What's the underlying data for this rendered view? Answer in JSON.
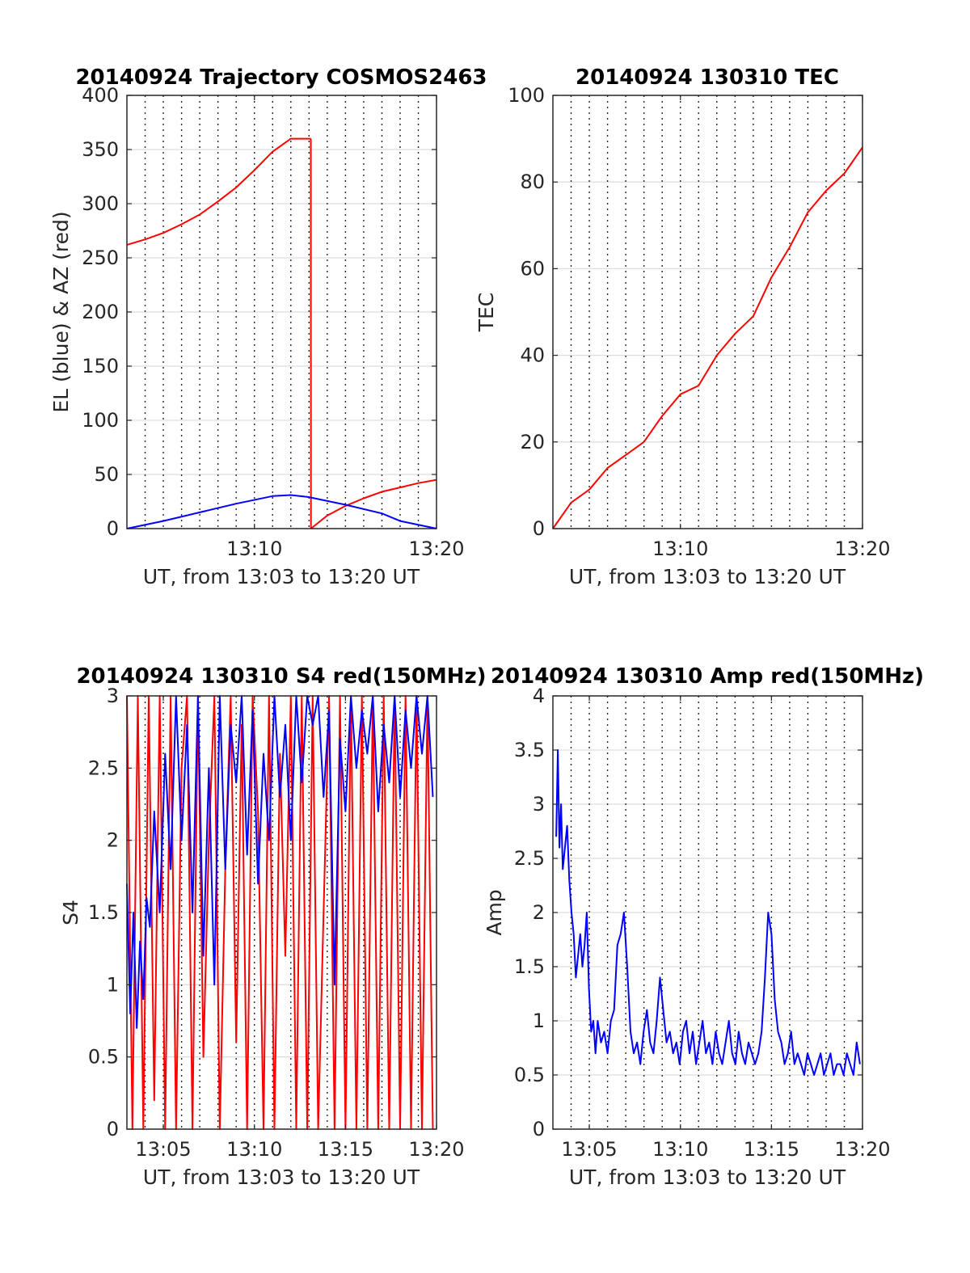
{
  "colors": {
    "red": "#ff0000",
    "blue": "#0000ff",
    "axis": "#262626",
    "grid": "#dedede"
  },
  "chart_data": [
    {
      "id": "trajectory",
      "type": "line",
      "title": "20140924 Trajectory COSMOS2463",
      "xlabel": "UT, from 13:03 to 13:20 UT",
      "ylabel": "EL (blue) & AZ (red)",
      "xlim": [
        13.05,
        13.3333
      ],
      "ylim": [
        0,
        400
      ],
      "yticks": [
        0,
        50,
        100,
        150,
        200,
        250,
        300,
        350,
        400
      ],
      "xticks": [
        {
          "v": 13.1667,
          "label": "13:10"
        },
        {
          "v": 13.3333,
          "label": "13:20"
        }
      ],
      "grid_minutes": true,
      "series": [
        {
          "color": "red",
          "x": [
            13.05,
            13.0667,
            13.0833,
            13.1,
            13.1167,
            13.1333,
            13.15,
            13.1667,
            13.1833,
            13.2,
            13.2167,
            13.2183
          ],
          "y": [
            262,
            267,
            273,
            281,
            290,
            302,
            315,
            331,
            348,
            360,
            360,
            360
          ]
        },
        {
          "color": "red",
          "x": [
            13.2183,
            13.2184
          ],
          "y": [
            360,
            0
          ]
        },
        {
          "color": "red",
          "x": [
            13.2184,
            13.2333,
            13.25,
            13.2667,
            13.2833,
            13.3,
            13.3167,
            13.3333
          ],
          "y": [
            0,
            12,
            21,
            28,
            34,
            38,
            42,
            45
          ]
        },
        {
          "color": "blue",
          "x": [
            13.05,
            13.0833,
            13.1167,
            13.15,
            13.1833,
            13.2,
            13.2167,
            13.25,
            13.2833,
            13.3,
            13.3333
          ],
          "y": [
            0,
            7,
            15,
            23,
            30,
            31,
            29,
            22,
            14,
            7,
            0
          ]
        }
      ]
    },
    {
      "id": "tec",
      "type": "line",
      "title": "20140924 130310 TEC",
      "xlabel": "UT, from 13:03 to 13:20 UT",
      "ylabel": "TEC",
      "xlim": [
        13.05,
        13.3333
      ],
      "ylim": [
        0,
        100
      ],
      "yticks": [
        0,
        20,
        40,
        60,
        80,
        100
      ],
      "xticks": [
        {
          "v": 13.1667,
          "label": "13:10"
        },
        {
          "v": 13.3333,
          "label": "13:20"
        }
      ],
      "grid_minutes": true,
      "series": [
        {
          "color": "red",
          "x": [
            13.05,
            13.0667,
            13.0833,
            13.1,
            13.1167,
            13.1333,
            13.15,
            13.1667,
            13.1833,
            13.2,
            13.2167,
            13.2333,
            13.25,
            13.2667,
            13.2833,
            13.3,
            13.3167,
            13.3333
          ],
          "y": [
            0,
            6,
            9,
            14,
            17,
            20,
            26,
            31,
            33,
            40,
            45,
            49,
            58,
            65,
            73,
            78,
            82,
            88
          ]
        }
      ]
    },
    {
      "id": "s4",
      "type": "line",
      "title": "20140924 130310 S4 red(150MHz)",
      "xlabel": "UT, from 13:03 to 13:20 UT",
      "ylabel": "S4",
      "xlim": [
        13.05,
        13.3333
      ],
      "ylim": [
        0,
        3
      ],
      "yticks": [
        0,
        0.5,
        1,
        1.5,
        2,
        2.5,
        3
      ],
      "xticks": [
        {
          "v": 13.0833,
          "label": "13:05"
        },
        {
          "v": 13.1667,
          "label": "13:10"
        },
        {
          "v": 13.25,
          "label": "13:15"
        },
        {
          "v": 13.3333,
          "label": "13:20"
        }
      ],
      "grid_minutes": true,
      "series": [
        {
          "color": "red",
          "x": [
            13.05,
            13.055,
            13.06,
            13.065,
            13.07,
            13.075,
            13.08,
            13.085,
            13.09,
            13.095,
            13.1,
            13.105,
            13.11,
            13.115,
            13.12,
            13.125,
            13.13,
            13.135,
            13.14,
            13.145,
            13.15,
            13.155,
            13.16,
            13.165,
            13.17,
            13.175,
            13.18,
            13.185,
            13.19,
            13.195,
            13.2,
            13.205,
            13.21,
            13.215,
            13.22,
            13.225,
            13.23,
            13.235,
            13.24,
            13.245,
            13.25,
            13.255,
            13.26,
            13.265,
            13.27,
            13.275,
            13.28,
            13.285,
            13.29,
            13.295,
            13.3,
            13.305,
            13.31,
            13.315,
            13.32,
            13.325,
            13.33
          ],
          "y": [
            3,
            0,
            3,
            0,
            3,
            0.2,
            3,
            0,
            3,
            0,
            2.5,
            3,
            0,
            3,
            0.5,
            2,
            3,
            0,
            1.8,
            3,
            0.6,
            2.8,
            0,
            3,
            2.2,
            0,
            3,
            0,
            2.6,
            1.2,
            3,
            0,
            3,
            0,
            3,
            0,
            1.5,
            3,
            0,
            3,
            0,
            3,
            0,
            3,
            0,
            3,
            0,
            3,
            0,
            3,
            0,
            3,
            0,
            3,
            0,
            3,
            0
          ]
        },
        {
          "color": "blue",
          "x": [
            13.05,
            13.053,
            13.056,
            13.059,
            13.062,
            13.065,
            13.068,
            13.071,
            13.075,
            13.08,
            13.085,
            13.09,
            13.095,
            13.1,
            13.105,
            13.11,
            13.115,
            13.12,
            13.125,
            13.13,
            13.135,
            13.14,
            13.145,
            13.15,
            13.155,
            13.16,
            13.165,
            13.17,
            13.175,
            13.18,
            13.185,
            13.19,
            13.195,
            13.2,
            13.205,
            13.21,
            13.215,
            13.22,
            13.225,
            13.23,
            13.235,
            13.24,
            13.245,
            13.25,
            13.255,
            13.26,
            13.265,
            13.27,
            13.275,
            13.28,
            13.285,
            13.29,
            13.295,
            13.3,
            13.305,
            13.31,
            13.315,
            13.32,
            13.325,
            13.33
          ],
          "y": [
            1.7,
            0.8,
            1.5,
            0.7,
            1.3,
            0.9,
            1.6,
            1.4,
            2.2,
            1.5,
            2.6,
            1.8,
            3,
            2.0,
            2.8,
            1.5,
            3,
            1.2,
            2.5,
            1.0,
            3,
            1.8,
            2.8,
            2.4,
            3,
            1.9,
            2.9,
            1.7,
            2.6,
            2.0,
            3,
            2.3,
            2.8,
            2.0,
            3,
            2.4,
            3,
            2.8,
            3,
            2.3,
            2.9,
            1.0,
            2.7,
            2.2,
            3,
            2.5,
            2.9,
            2.6,
            3,
            2.2,
            2.8,
            2.4,
            3,
            2.3,
            2.9,
            2.5,
            3,
            2.6,
            3,
            2.3
          ]
        }
      ]
    },
    {
      "id": "amp",
      "type": "line",
      "title": "20140924 130310 Amp red(150MHz)",
      "xlabel": "UT, from 13:03 to 13:20 UT",
      "ylabel": "Amp",
      "xlim": [
        13.05,
        13.3333
      ],
      "ylim": [
        0,
        4
      ],
      "yticks": [
        0,
        0.5,
        1,
        1.5,
        2,
        2.5,
        3,
        3.5,
        4
      ],
      "xticks": [
        {
          "v": 13.0833,
          "label": "13:05"
        },
        {
          "v": 13.1667,
          "label": "13:10"
        },
        {
          "v": 13.25,
          "label": "13:15"
        },
        {
          "v": 13.3333,
          "label": "13:20"
        }
      ],
      "grid_minutes": true,
      "series": [
        {
          "color": "blue",
          "x": [
            13.053,
            13.0545,
            13.056,
            13.0575,
            13.059,
            13.061,
            13.063,
            13.065,
            13.067,
            13.069,
            13.071,
            13.073,
            13.075,
            13.077,
            13.079,
            13.081,
            13.083,
            13.085,
            13.087,
            13.089,
            13.091,
            13.094,
            13.097,
            13.1,
            13.103,
            13.106,
            13.109,
            13.112,
            13.115,
            13.118,
            13.121,
            13.124,
            13.127,
            13.13,
            13.133,
            13.136,
            13.139,
            13.142,
            13.145,
            13.148,
            13.151,
            13.154,
            13.157,
            13.16,
            13.163,
            13.166,
            13.169,
            13.172,
            13.175,
            13.178,
            13.181,
            13.184,
            13.187,
            13.19,
            13.193,
            13.196,
            13.199,
            13.202,
            13.205,
            13.208,
            13.211,
            13.214,
            13.217,
            13.22,
            13.223,
            13.226,
            13.229,
            13.232,
            13.235,
            13.238,
            13.241,
            13.244,
            13.247,
            13.25,
            13.253,
            13.256,
            13.259,
            13.262,
            13.265,
            13.268,
            13.271,
            13.274,
            13.277,
            13.28,
            13.283,
            13.286,
            13.289,
            13.292,
            13.295,
            13.298,
            13.301,
            13.304,
            13.307,
            13.31,
            13.313,
            13.316,
            13.319,
            13.322,
            13.325,
            13.328,
            13.331
          ],
          "y": [
            2.7,
            3.5,
            2.6,
            3.0,
            2.4,
            2.6,
            2.8,
            2.3,
            2.0,
            1.8,
            1.4,
            1.6,
            1.8,
            1.5,
            1.7,
            2.0,
            1.3,
            0.9,
            1.0,
            0.7,
            1.0,
            0.8,
            0.9,
            0.7,
            1.0,
            1.1,
            1.7,
            1.8,
            2.0,
            1.5,
            0.9,
            0.7,
            0.8,
            0.6,
            0.9,
            1.1,
            0.8,
            0.7,
            1.0,
            1.4,
            1.1,
            0.8,
            0.9,
            0.7,
            0.8,
            0.6,
            0.9,
            1.0,
            0.7,
            0.9,
            0.6,
            0.8,
            1.0,
            0.7,
            0.8,
            0.6,
            0.9,
            0.7,
            0.6,
            0.8,
            1.0,
            0.7,
            0.6,
            0.9,
            0.7,
            0.6,
            0.8,
            0.7,
            0.6,
            0.7,
            0.9,
            1.4,
            2.0,
            1.8,
            1.2,
            0.9,
            0.8,
            0.6,
            0.7,
            0.9,
            0.6,
            0.7,
            0.6,
            0.5,
            0.7,
            0.6,
            0.5,
            0.6,
            0.7,
            0.5,
            0.6,
            0.7,
            0.5,
            0.6,
            0.6,
            0.5,
            0.7,
            0.6,
            0.5,
            0.8,
            0.6
          ]
        }
      ]
    }
  ]
}
